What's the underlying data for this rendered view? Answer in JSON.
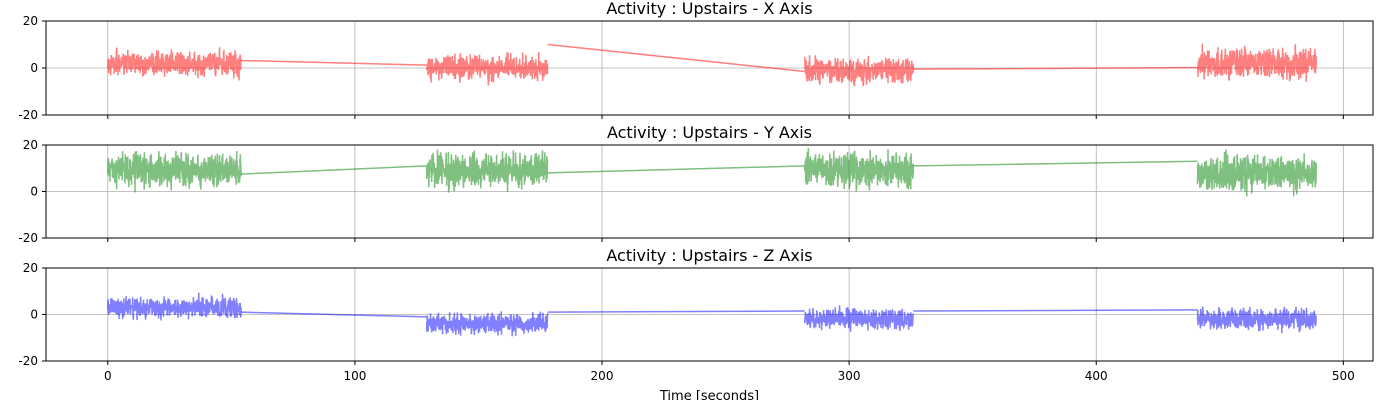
{
  "chart_data": [
    {
      "type": "line",
      "title": "Activity : Upstairs - X Axis",
      "xlabel": "",
      "ylabel": "",
      "xlim": [
        -25,
        512
      ],
      "ylim": [
        -20,
        20
      ],
      "yticks": [
        -20,
        0,
        20
      ],
      "xticks": [
        0,
        100,
        200,
        300,
        400,
        500
      ],
      "show_x_tick_labels": false,
      "grid": true,
      "color": "#ff0000",
      "alpha": 0.5,
      "segments": [
        [
          0,
          54
        ],
        [
          129,
          178
        ],
        [
          282,
          326
        ],
        [
          441,
          489
        ]
      ],
      "segment_means": [
        2,
        0,
        -1,
        2
      ],
      "segment_amplitudes": [
        6,
        6,
        6,
        7
      ],
      "connectors": [
        [
          54,
          3.2,
          129,
          1.2
        ],
        [
          178,
          10,
          282,
          -1.5
        ],
        [
          326,
          -0.5,
          441,
          0.2
        ]
      ]
    },
    {
      "type": "line",
      "title": "Activity : Upstairs - Y Axis",
      "xlabel": "",
      "ylabel": "",
      "xlim": [
        -25,
        512
      ],
      "ylim": [
        -20,
        20
      ],
      "yticks": [
        -20,
        0,
        20
      ],
      "xticks": [
        0,
        100,
        200,
        300,
        400,
        500
      ],
      "show_x_tick_labels": false,
      "grid": true,
      "color": "#008000",
      "alpha": 0.5,
      "segments": [
        [
          0,
          54
        ],
        [
          129,
          178
        ],
        [
          282,
          326
        ],
        [
          441,
          489
        ]
      ],
      "segment_means": [
        9,
        9,
        9,
        8
      ],
      "segment_amplitudes": [
        8,
        8,
        8,
        9
      ],
      "connectors": [
        [
          54,
          7.5,
          129,
          11
        ],
        [
          178,
          8,
          282,
          11
        ],
        [
          326,
          11,
          441,
          13
        ]
      ]
    },
    {
      "type": "line",
      "title": "Activity : Upstairs - Z Axis",
      "xlabel": "Time [seconds]",
      "ylabel": "",
      "xlim": [
        -25,
        512
      ],
      "ylim": [
        -20,
        20
      ],
      "yticks": [
        -20,
        0,
        20
      ],
      "xticks": [
        0,
        100,
        200,
        300,
        400,
        500
      ],
      "show_x_tick_labels": true,
      "grid": true,
      "color": "#0000ff",
      "alpha": 0.5,
      "segments": [
        [
          0,
          54
        ],
        [
          129,
          178
        ],
        [
          282,
          326
        ],
        [
          441,
          489
        ]
      ],
      "segment_means": [
        3,
        -4,
        -2,
        -2
      ],
      "segment_amplitudes": [
        5,
        5,
        5,
        5
      ],
      "connectors": [
        [
          54,
          1,
          129,
          -1
        ],
        [
          178,
          1,
          282,
          1.5
        ],
        [
          326,
          1.5,
          441,
          2
        ]
      ]
    }
  ]
}
